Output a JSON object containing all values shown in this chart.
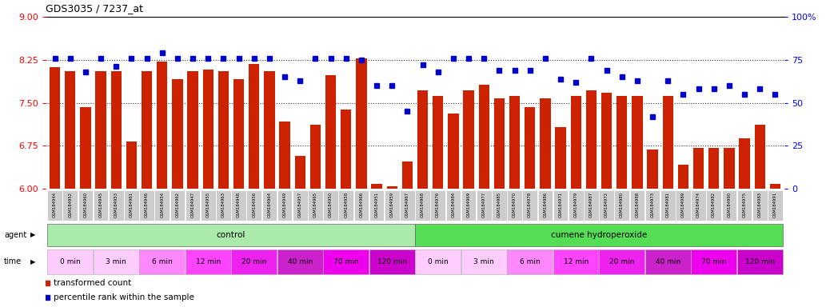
{
  "title": "GDS3035 / 7237_at",
  "samples": [
    "GSM184944",
    "GSM184952",
    "GSM184960",
    "GSM184945",
    "GSM184953",
    "GSM184961",
    "GSM184946",
    "GSM184954",
    "GSM184962",
    "GSM184947",
    "GSM184955",
    "GSM184963",
    "GSM184948",
    "GSM184956",
    "GSM184964",
    "GSM184949",
    "GSM184957",
    "GSM184965",
    "GSM184950",
    "GSM184958",
    "GSM184966",
    "GSM184951",
    "GSM184959",
    "GSM184967",
    "GSM184968",
    "GSM184976",
    "GSM184984",
    "GSM184969",
    "GSM184977",
    "GSM184985",
    "GSM184970",
    "GSM184978",
    "GSM184986",
    "GSM184971",
    "GSM184979",
    "GSM184987",
    "GSM184972",
    "GSM184980",
    "GSM184988",
    "GSM184973",
    "GSM184981",
    "GSM184989",
    "GSM184974",
    "GSM184982",
    "GSM184990",
    "GSM184975",
    "GSM184983",
    "GSM184991"
  ],
  "bar_values": [
    8.12,
    8.05,
    7.42,
    8.05,
    8.05,
    6.82,
    8.05,
    8.22,
    7.92,
    8.05,
    8.08,
    8.05,
    7.92,
    8.18,
    8.05,
    7.18,
    6.58,
    7.12,
    7.98,
    7.38,
    8.28,
    6.08,
    6.05,
    6.48,
    7.72,
    7.62,
    7.32,
    7.72,
    7.82,
    7.58,
    7.62,
    7.42,
    7.58,
    7.08,
    7.62,
    7.72,
    7.68,
    7.62,
    7.62,
    6.68,
    7.62,
    6.42,
    6.72,
    6.72,
    6.72,
    6.88,
    7.12,
    6.08
  ],
  "percentile_values": [
    76,
    76,
    68,
    76,
    71,
    76,
    76,
    79,
    76,
    76,
    76,
    76,
    76,
    76,
    76,
    65,
    63,
    76,
    76,
    76,
    75,
    60,
    60,
    45,
    72,
    68,
    76,
    76,
    76,
    69,
    69,
    69,
    76,
    64,
    62,
    76,
    69,
    65,
    63,
    42,
    63,
    55,
    58,
    58,
    60,
    55,
    58,
    55
  ],
  "ylim_left": [
    6,
    9
  ],
  "ylim_right": [
    0,
    100
  ],
  "yticks_left": [
    6,
    6.75,
    7.5,
    8.25,
    9
  ],
  "yticks_right": [
    0,
    25,
    50,
    75,
    100
  ],
  "bar_color": "#cc2200",
  "dot_color": "#0000cc",
  "sample_bg_color": "#cccccc",
  "agent_control_color": "#aaeaaa",
  "agent_treatment_color": "#55dd55",
  "agents": [
    {
      "label": "control",
      "start": 0,
      "end": 23,
      "color": "#aaeaaa"
    },
    {
      "label": "cumene hydroperoxide",
      "start": 24,
      "end": 47,
      "color": "#55dd55"
    }
  ],
  "time_groups_control": [
    {
      "label": "0 min",
      "indices": [
        0,
        1,
        2
      ]
    },
    {
      "label": "3 min",
      "indices": [
        3,
        4,
        5
      ]
    },
    {
      "label": "6 min",
      "indices": [
        6,
        7,
        8
      ]
    },
    {
      "label": "12 min",
      "indices": [
        9,
        10,
        11
      ]
    },
    {
      "label": "20 min",
      "indices": [
        12,
        13,
        14
      ]
    },
    {
      "label": "40 min",
      "indices": [
        15,
        16,
        17
      ]
    },
    {
      "label": "70 min",
      "indices": [
        18,
        19,
        20
      ]
    },
    {
      "label": "120 min",
      "indices": [
        21,
        22,
        23
      ]
    }
  ],
  "time_groups_treatment": [
    {
      "label": "0 min",
      "indices": [
        24,
        25,
        26
      ]
    },
    {
      "label": "3 min",
      "indices": [
        27,
        28,
        29
      ]
    },
    {
      "label": "6 min",
      "indices": [
        30,
        31,
        32
      ]
    },
    {
      "label": "12 min",
      "indices": [
        33,
        34,
        35
      ]
    },
    {
      "label": "20 min",
      "indices": [
        36,
        37,
        38
      ]
    },
    {
      "label": "40 min",
      "indices": [
        39,
        40,
        41
      ]
    },
    {
      "label": "70 min",
      "indices": [
        42,
        43,
        44
      ]
    },
    {
      "label": "120 min",
      "indices": [
        45,
        46,
        47
      ]
    }
  ],
  "time_colors_light": "#ffccff",
  "time_colors_dark": "#ee44ee"
}
